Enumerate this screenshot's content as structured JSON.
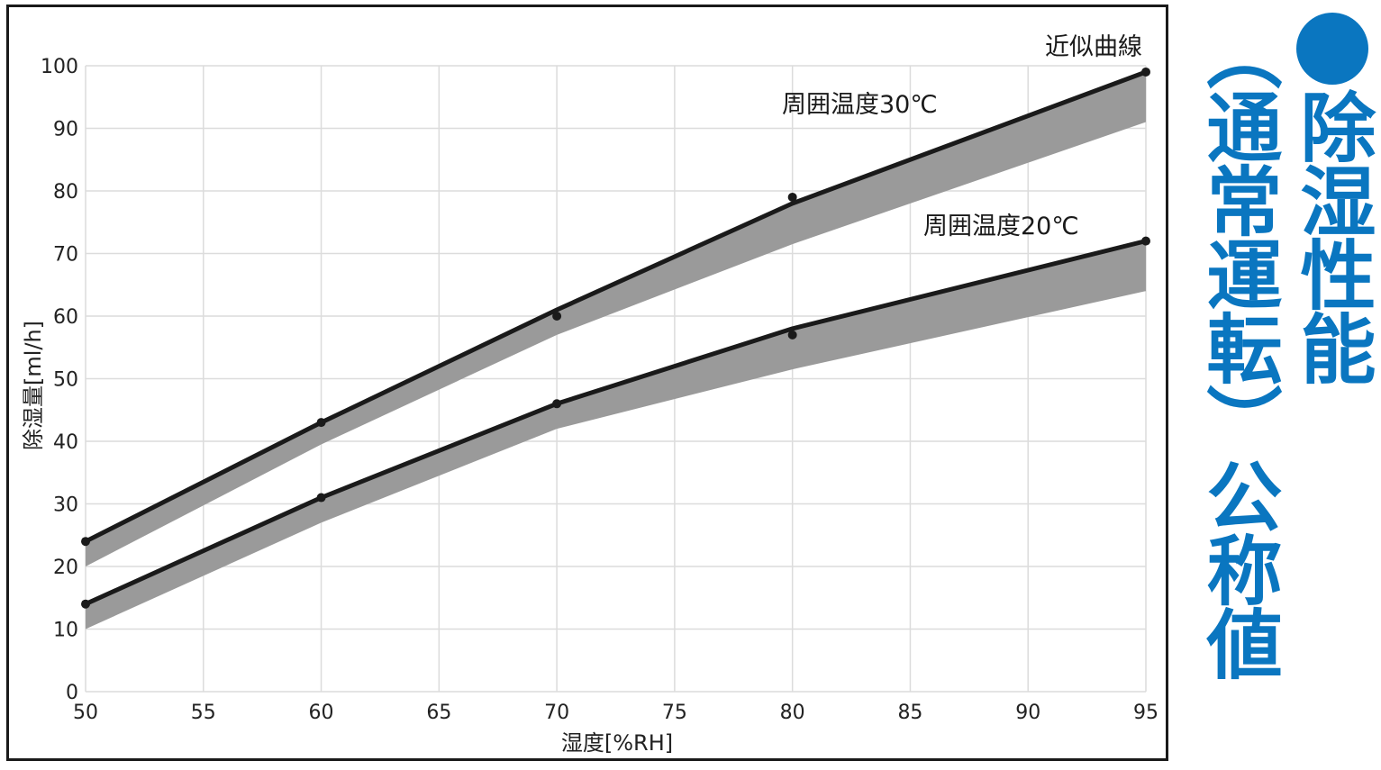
{
  "colors": {
    "accent": "#0a76c0",
    "line": "#1a1a1a",
    "band": "#9a9a9a"
  },
  "side_title": {
    "bullet_icon": "blue-circle",
    "line1": "除湿性能",
    "line2": "（通常運転）公称値"
  },
  "chart_data": {
    "type": "line",
    "title": "",
    "xlabel": "湿度[%RH]",
    "ylabel": "除湿量[ml/h]",
    "xlim": [
      50,
      95
    ],
    "ylim": [
      0,
      100
    ],
    "xticks": [
      50,
      55,
      60,
      65,
      70,
      75,
      80,
      85,
      90,
      95
    ],
    "yticks": [
      0,
      10,
      20,
      30,
      40,
      50,
      60,
      70,
      80,
      90,
      100
    ],
    "grid": true,
    "annotations": {
      "curve_label": "近似曲線",
      "t30_label": "周囲温度30℃",
      "t20_label": "周囲温度20℃"
    },
    "series": [
      {
        "name": "周囲温度30℃",
        "x": [
          50,
          60,
          70,
          80,
          95
        ],
        "curve_y": [
          24,
          43,
          61,
          78,
          99
        ],
        "band_lower": [
          20,
          39.5,
          57,
          71.5,
          91
        ],
        "measured_points": [
          [
            50,
            24
          ],
          [
            60,
            43
          ],
          [
            70,
            60
          ],
          [
            80,
            79
          ],
          [
            95,
            99
          ]
        ]
      },
      {
        "name": "周囲温度20℃",
        "x": [
          50,
          60,
          70,
          80,
          95
        ],
        "curve_y": [
          14,
          31,
          46,
          58,
          72
        ],
        "band_lower": [
          10,
          27,
          42,
          51.5,
          64
        ],
        "measured_points": [
          [
            50,
            14
          ],
          [
            60,
            31
          ],
          [
            70,
            46
          ],
          [
            80,
            57
          ],
          [
            95,
            72
          ]
        ]
      }
    ]
  }
}
